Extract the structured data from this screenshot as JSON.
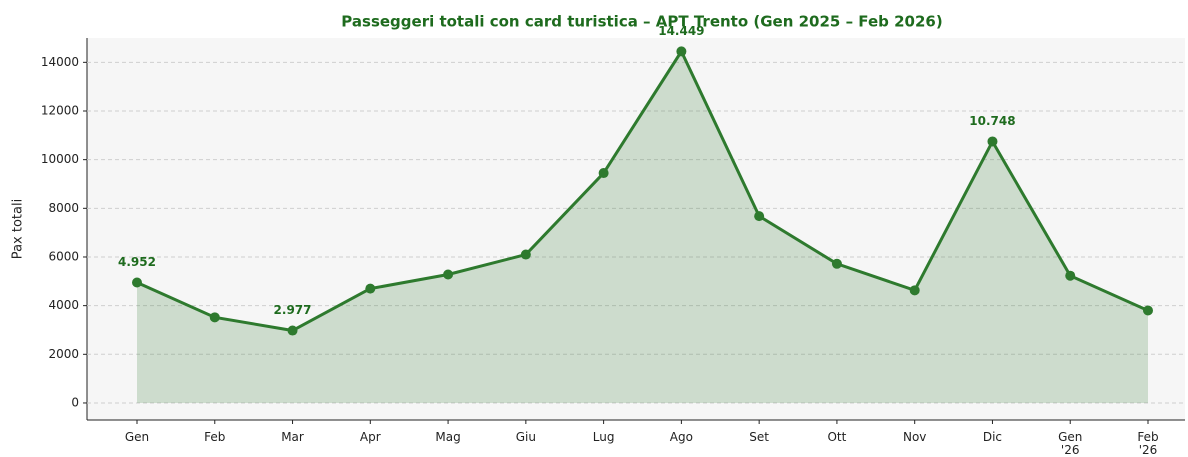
{
  "chart_data": {
    "type": "line",
    "title": "Passeggeri totali con card turistica – APT Trento (Gen 2025 – Feb 2026)",
    "y_label": "Pax totali",
    "categories": [
      "Gen",
      "Feb",
      "Mar",
      "Apr",
      "Mag",
      "Giu",
      "Lug",
      "Ago",
      "Set",
      "Ott",
      "Nov",
      "Dic",
      "Gen\n'26",
      "Feb\n'26"
    ],
    "series": [
      {
        "color": "#2e7a2e",
        "values": [
          4952,
          3520,
          2977,
          4700,
          5280,
          6100,
          9450,
          14449,
          7680,
          5720,
          4630,
          10748,
          5230,
          3800
        ],
        "value_labels": [
          "4.952",
          null,
          "2.977",
          null,
          null,
          null,
          null,
          "14.449",
          null,
          null,
          null,
          "10.748",
          null,
          null
        ]
      }
    ],
    "ylim": [
      -700,
      15000
    ],
    "yticks": [
      0,
      2000,
      4000,
      6000,
      8000,
      10000,
      12000,
      14000
    ],
    "grid": true
  }
}
